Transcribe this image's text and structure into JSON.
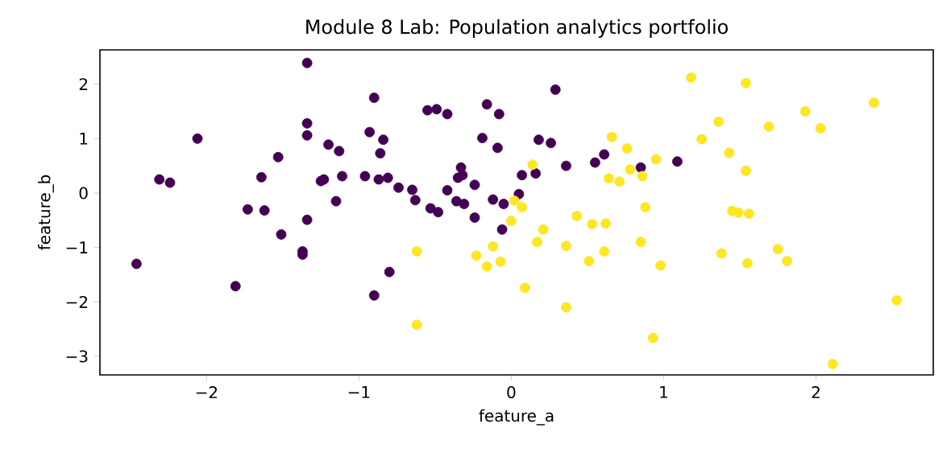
{
  "chart_data": {
    "type": "scatter",
    "title": "Module 8 Lab: Population analytics portfolio",
    "xlabel": "feature_a",
    "ylabel": "feature_b",
    "xlim": [
      -2.7,
      2.77
    ],
    "ylim": [
      -3.34,
      2.63
    ],
    "xticks": [
      {
        "value": -2,
        "label": "−2"
      },
      {
        "value": -1,
        "label": "−1"
      },
      0,
      1,
      2
    ],
    "yticks": [
      {
        "value": -3,
        "label": "−3"
      },
      {
        "value": -2,
        "label": "−2"
      },
      {
        "value": -1,
        "label": "−1"
      },
      0,
      1,
      2
    ],
    "series": [
      {
        "color": "#440154",
        "x": [
          -2.46,
          -1.34,
          -2.06,
          -2.31,
          -2.24,
          -1.64,
          -1.53,
          -1.34,
          -1.34,
          -1.2,
          -1.13,
          -1.25,
          -1.23,
          -1.11,
          -1.15,
          -1.73,
          -1.62,
          -1.34,
          -0.9,
          -0.93,
          -0.84,
          -0.86,
          -0.96,
          -0.87,
          -0.81,
          -0.74,
          -0.65,
          -0.63,
          -0.55,
          -0.49,
          -0.42,
          -0.16,
          -0.08,
          -0.19,
          -0.09,
          -0.33,
          -0.32,
          -0.35,
          -0.24,
          -0.42,
          -0.36,
          -0.31,
          -0.53,
          -0.48,
          -0.24,
          -0.12,
          -0.06,
          -1.51,
          -1.37,
          -1.37,
          -1.81,
          -0.8,
          -0.9,
          0.29,
          0.18,
          0.26,
          0.36,
          0.55,
          0.61,
          0.85,
          1.09,
          0.07,
          0.16,
          0.05,
          -0.05
        ],
        "values": [
          -1.3,
          2.39,
          1.0,
          0.25,
          0.19,
          0.29,
          0.66,
          1.28,
          1.06,
          0.89,
          0.77,
          0.22,
          0.25,
          0.31,
          -0.15,
          -0.3,
          -0.32,
          -0.49,
          1.75,
          1.12,
          0.98,
          0.73,
          0.31,
          0.25,
          0.28,
          0.1,
          0.06,
          -0.13,
          1.52,
          1.54,
          1.45,
          1.63,
          1.45,
          1.01,
          0.83,
          0.47,
          0.33,
          0.28,
          0.15,
          0.05,
          -0.15,
          -0.2,
          -0.28,
          -0.35,
          -0.45,
          -0.12,
          -0.67,
          -0.76,
          -1.07,
          -1.13,
          -1.71,
          -1.45,
          -1.88,
          1.9,
          0.98,
          0.92,
          0.5,
          0.56,
          0.71,
          0.47,
          0.58,
          0.33,
          0.36,
          -0.02,
          -0.2
        ]
      },
      {
        "color": "#fde725",
        "x": [
          1.18,
          1.54,
          2.38,
          1.93,
          2.03,
          1.36,
          1.69,
          1.25,
          1.43,
          1.54,
          0.66,
          0.76,
          0.95,
          0.78,
          0.86,
          0.64,
          0.71,
          0.14,
          0.88,
          1.45,
          1.49,
          1.56,
          0.43,
          0.53,
          0.62,
          0.0,
          0.07,
          0.02,
          0.21,
          0.17,
          0.36,
          0.85,
          0.51,
          0.61,
          0.98,
          1.38,
          1.55,
          1.75,
          1.81,
          -0.12,
          -0.07,
          -0.16,
          0.09,
          0.36,
          0.93,
          2.53,
          2.11,
          -0.62,
          -0.62,
          -0.23
        ],
        "values": [
          2.12,
          2.02,
          1.66,
          1.5,
          1.19,
          1.31,
          1.22,
          0.99,
          0.74,
          0.41,
          1.03,
          0.82,
          0.62,
          0.43,
          0.31,
          0.27,
          0.21,
          0.52,
          -0.26,
          -0.33,
          -0.36,
          -0.38,
          -0.42,
          -0.57,
          -0.56,
          -0.51,
          -0.26,
          -0.14,
          -0.67,
          -0.9,
          -0.97,
          -0.9,
          -1.25,
          -1.07,
          -1.33,
          -1.11,
          -1.29,
          -1.03,
          -1.25,
          -0.98,
          -1.26,
          -1.35,
          -1.74,
          -2.1,
          -2.66,
          -1.97,
          -3.14,
          -1.07,
          -2.42,
          -1.15
        ]
      }
    ]
  }
}
